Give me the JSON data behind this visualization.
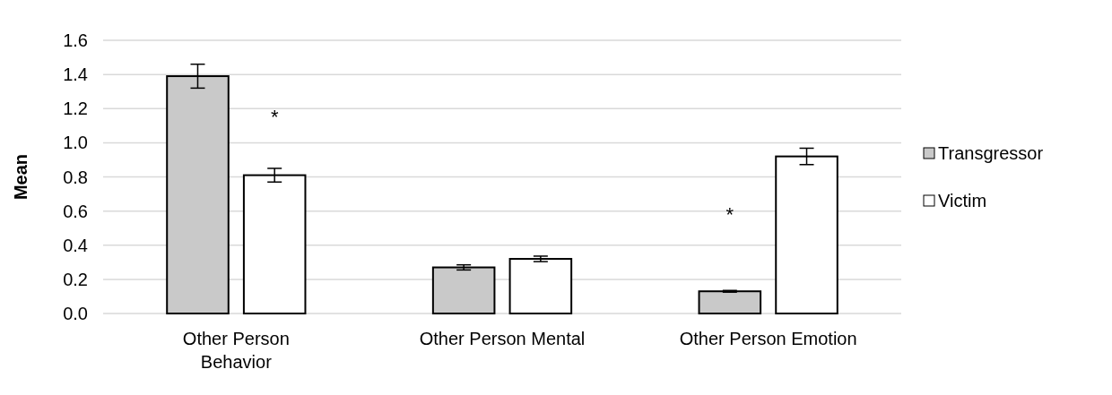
{
  "chart_data": {
    "type": "bar",
    "ylabel": "Mean",
    "categories": [
      "Other Person Behavior",
      "Other Person Mental",
      "Other Person Emotion"
    ],
    "series": [
      {
        "name": "Transgressor",
        "color": "#c9c9c9",
        "values": [
          1.39,
          0.27,
          0.13
        ],
        "errors": [
          0.07,
          0.015,
          0.005
        ]
      },
      {
        "name": "Victim",
        "color": "#ffffff",
        "values": [
          0.81,
          0.32,
          0.92
        ],
        "errors": [
          0.04,
          0.016,
          0.048
        ]
      }
    ],
    "ylim": [
      0,
      1.6
    ],
    "yticks": [
      {
        "value": 0,
        "label": "0.0"
      },
      {
        "value": 0.2,
        "label": "0.2"
      },
      {
        "value": 0.4,
        "label": "0.4"
      },
      {
        "value": 0.6,
        "label": "0.6"
      },
      {
        "value": 0.8,
        "label": "0.8"
      },
      {
        "value": 1,
        "label": "1.0"
      },
      {
        "value": 1.2,
        "label": "1.2"
      },
      {
        "value": 1.4,
        "label": "1.4"
      },
      {
        "value": 1.6,
        "label": "1.6"
      }
    ],
    "grid": "y",
    "legend": "right",
    "annotations": [
      "*",
      "*"
    ]
  }
}
